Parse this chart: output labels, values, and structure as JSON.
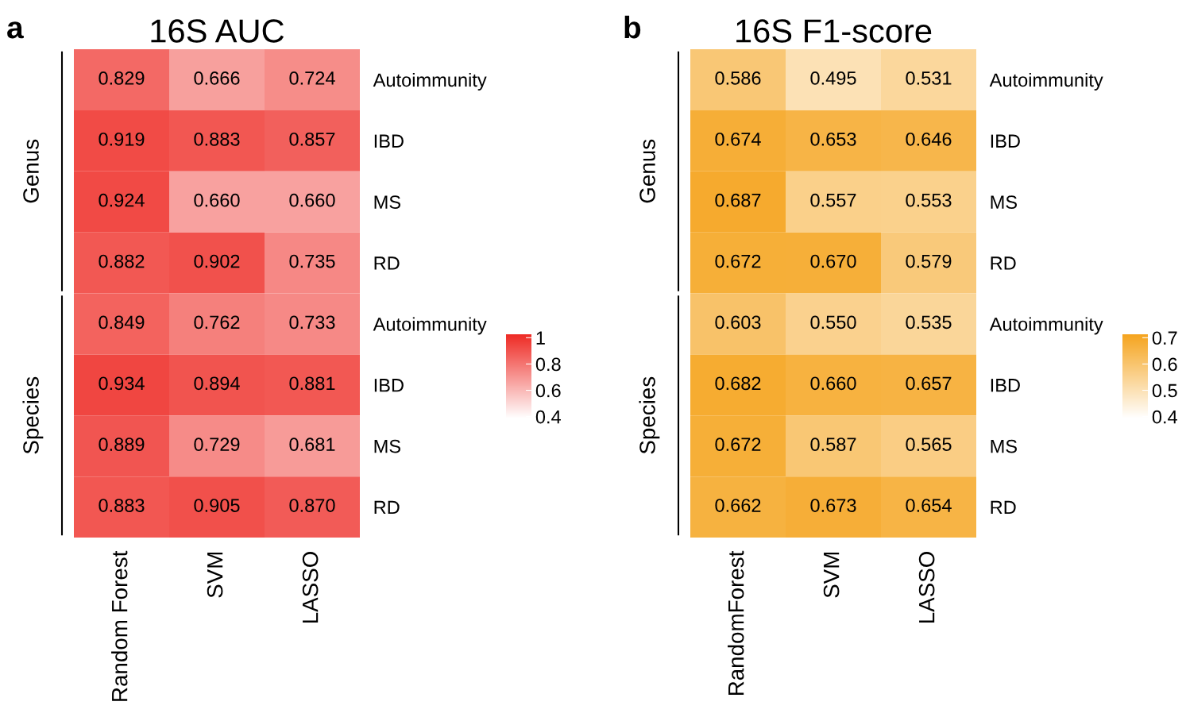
{
  "chart_data": [
    {
      "type": "heatmap",
      "title": "16S AUC",
      "annotations": [
        "a",
        "Genus",
        "Species"
      ],
      "categories": [
        "Random Forest",
        "SVM",
        "LASSO"
      ],
      "y_categories": [
        "Autoimmunity",
        "IBD",
        "MS",
        "RD",
        "Autoimmunity",
        "IBD",
        "MS",
        "RD"
      ],
      "cells": [
        [
          0.829,
          0.666,
          0.724
        ],
        [
          0.919,
          0.883,
          0.857
        ],
        [
          0.924,
          0.66,
          0.66
        ],
        [
          0.882,
          0.902,
          0.735
        ],
        [
          0.849,
          0.762,
          0.733
        ],
        [
          0.934,
          0.894,
          0.881
        ],
        [
          0.889,
          0.729,
          0.681
        ],
        [
          0.883,
          0.905,
          0.87
        ]
      ],
      "cell_labels": [
        [
          "0.829",
          "0.666",
          "0.724"
        ],
        [
          "0.919",
          "0.883",
          "0.857"
        ],
        [
          "0.924",
          "0.660",
          "0.660"
        ],
        [
          "0.882",
          "0.902",
          "0.735"
        ],
        [
          "0.849",
          "0.762",
          "0.733"
        ],
        [
          "0.934",
          "0.894",
          "0.881"
        ],
        [
          "0.889",
          "0.729",
          "0.681"
        ],
        [
          "0.883",
          "0.905",
          "0.870"
        ]
      ],
      "colors": [
        "#ffffff",
        "#ee2a24"
      ],
      "clim": [
        0.38,
        1.02
      ],
      "cticks": [
        {
          "value": 0.4,
          "label": "0.4"
        },
        {
          "value": 0.6,
          "label": "0.6"
        },
        {
          "value": 0.8,
          "label": "0.8"
        },
        {
          "value": 1,
          "label": "1"
        }
      ]
    },
    {
      "type": "heatmap",
      "title": "16S F1-score",
      "annotations": [
        "b",
        "Genus",
        "Species"
      ],
      "categories": [
        "RandomForest",
        "SVM",
        "LASSO"
      ],
      "y_categories": [
        "Autoimmunity",
        "IBD",
        "MS",
        "RD",
        "Autoimmunity",
        "IBD",
        "MS",
        "RD"
      ],
      "cells": [
        [
          0.586,
          0.495,
          0.531
        ],
        [
          0.674,
          0.653,
          0.646
        ],
        [
          0.687,
          0.557,
          0.553
        ],
        [
          0.672,
          0.67,
          0.579
        ],
        [
          0.603,
          0.55,
          0.535
        ],
        [
          0.682,
          0.66,
          0.657
        ],
        [
          0.672,
          0.587,
          0.565
        ],
        [
          0.662,
          0.673,
          0.654
        ]
      ],
      "cell_labels": [
        [
          "0.586",
          "0.495",
          "0.531"
        ],
        [
          "0.674",
          "0.653",
          "0.646"
        ],
        [
          "0.687",
          "0.557",
          "0.553"
        ],
        [
          "0.672",
          "0.670",
          "0.579"
        ],
        [
          "0.603",
          "0.550",
          "0.535"
        ],
        [
          "0.682",
          "0.660",
          "0.657"
        ],
        [
          "0.672",
          "0.587",
          "0.565"
        ],
        [
          "0.662",
          "0.673",
          "0.654"
        ]
      ],
      "colors": [
        "#ffffff",
        "#f5a41e"
      ],
      "clim": [
        0.39,
        0.71
      ],
      "cticks": [
        {
          "value": 0.4,
          "label": "0.4"
        },
        {
          "value": 0.5,
          "label": "0.5"
        },
        {
          "value": 0.6,
          "label": "0.6"
        },
        {
          "value": 0.7,
          "label": "0.7"
        }
      ]
    }
  ]
}
